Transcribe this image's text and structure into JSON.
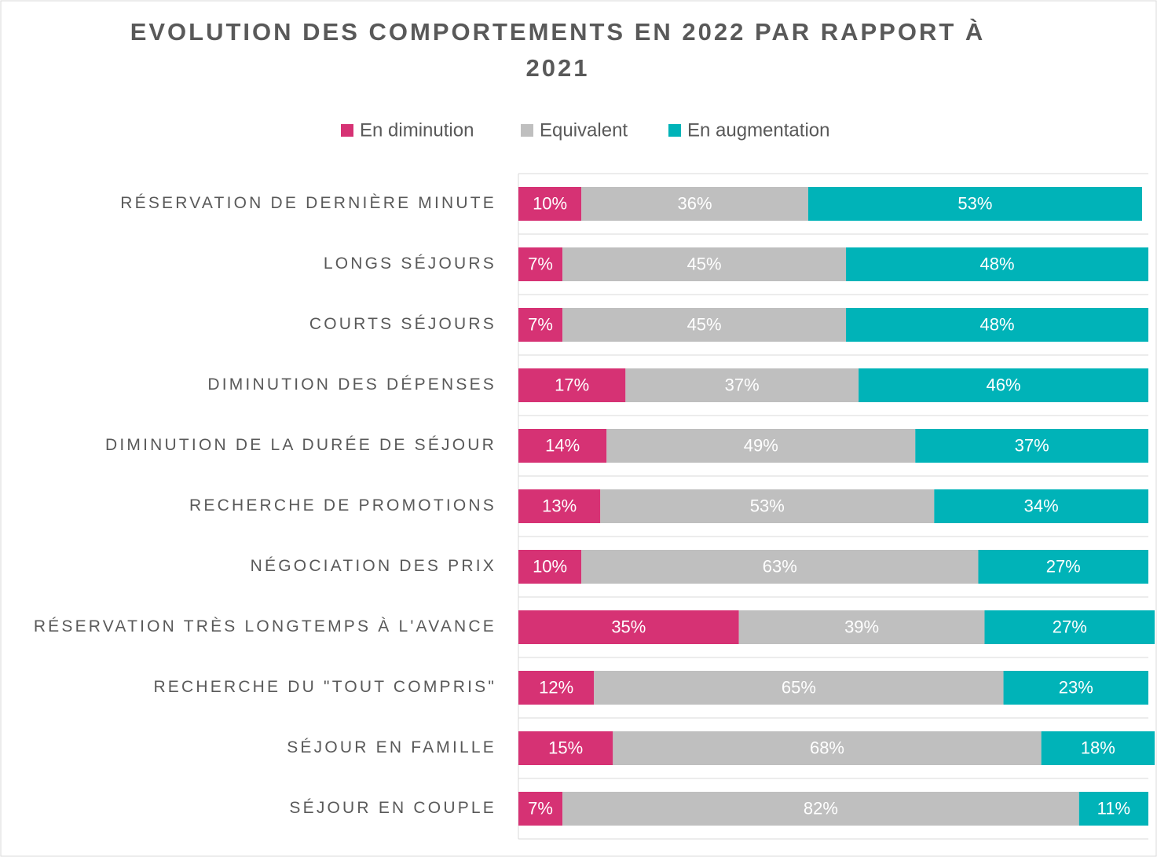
{
  "chart_data": {
    "type": "bar",
    "orientation": "horizontal",
    "stacked": true,
    "title": "EVOLUTION DES COMPORTEMENTS EN 2022 PAR RAPPORT À 2021",
    "categories": [
      "RÉSERVATION DE DERNIÈRE MINUTE",
      "LONGS SÉJOURS",
      "COURTS SÉJOURS",
      "DIMINUTION DES DÉPENSES",
      "DIMINUTION DE LA DURÉE DE SÉJOUR",
      "RECHERCHE DE PROMOTIONS",
      "NÉGOCIATION DES PRIX",
      "RÉSERVATION TRÈS LONGTEMPS À L'AVANCE",
      "RECHERCHE DU \"TOUT COMPRIS\"",
      "SÉJOUR EN FAMILLE",
      "SÉJOUR EN COUPLE"
    ],
    "series": [
      {
        "name": "En diminution",
        "color": "#d63274",
        "values": [
          10,
          7,
          7,
          17,
          14,
          13,
          10,
          35,
          12,
          15,
          7
        ],
        "value_labels": [
          "10%",
          "7%",
          "7%",
          "17%",
          "14%",
          "13%",
          "10%",
          "35%",
          "12%",
          "15%",
          "7%"
        ]
      },
      {
        "name": "Equivalent",
        "color": "#bfbfbf",
        "values": [
          36,
          45,
          45,
          37,
          49,
          53,
          63,
          39,
          65,
          68,
          82
        ],
        "value_labels": [
          "36%",
          "45%",
          "45%",
          "37%",
          "49%",
          "53%",
          "63%",
          "39%",
          "65%",
          "68%",
          "82%"
        ]
      },
      {
        "name": "En augmentation",
        "color": "#00b3b8",
        "values": [
          53,
          48,
          48,
          46,
          37,
          34,
          27,
          27,
          23,
          18,
          11
        ],
        "value_labels": [
          "53%",
          "48%",
          "48%",
          "46%",
          "37%",
          "34%",
          "27%",
          "27%",
          "23%",
          "18%",
          "11%"
        ]
      }
    ],
    "xlim": [
      0,
      100
    ],
    "legend": "top"
  }
}
